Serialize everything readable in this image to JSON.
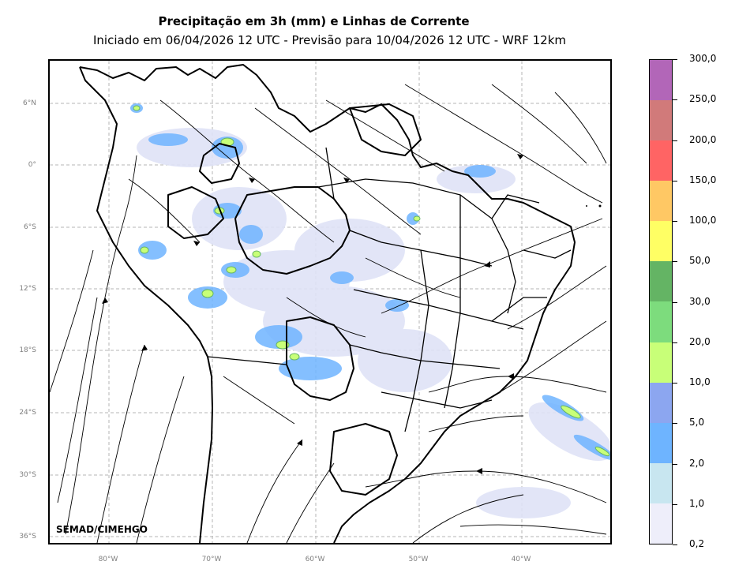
{
  "header": {
    "title": "Precipitação em 3h (mm) e Linhas de Corrente",
    "subtitle": "Iniciado em 06/04/2026 12 UTC - Previsão para 10/04/2026 12 UTC - WRF 12km"
  },
  "map": {
    "credit": "SEMAD/CIMEHGO",
    "lat_labels": [
      "6°N",
      "0°",
      "6°S",
      "12°S",
      "18°S",
      "24°S",
      "30°S",
      "36°S"
    ],
    "lon_labels": [
      "80°W",
      "70°W",
      "60°W",
      "50°W",
      "40°W"
    ],
    "gridlines": true
  },
  "colorbar": {
    "tick_labels": [
      "300,0",
      "250,0",
      "200,0",
      "150,0",
      "100,0",
      "50,0",
      "30,0",
      "20,0",
      "10,0",
      "5,0",
      "2,0",
      "1,0",
      "0,2"
    ],
    "colors": [
      "#b266b8",
      "#d17a7a",
      "#ff6464",
      "#ffc864",
      "#ffff64",
      "#64b464",
      "#7ddc7d",
      "#c8ff78",
      "#8ca6f0",
      "#6eb4ff",
      "#c8e6f0",
      "#eeeefa"
    ]
  }
}
